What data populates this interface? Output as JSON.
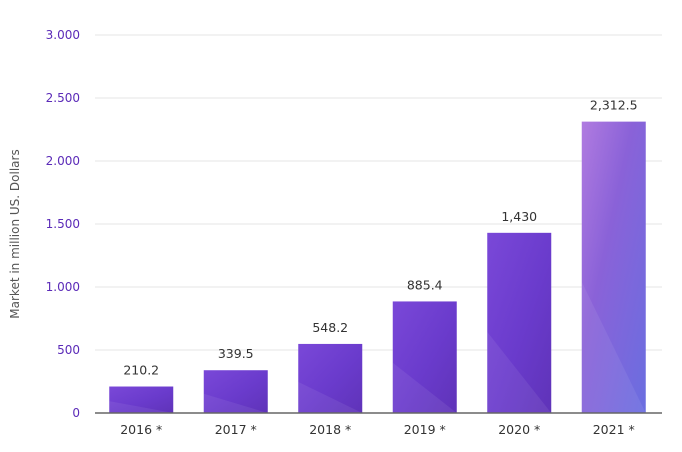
{
  "chart_data": {
    "type": "bar",
    "categories": [
      "2016 *",
      "2017 *",
      "2018 *",
      "2019 *",
      "2020 *",
      "2021 *"
    ],
    "values": [
      210.2,
      339.5,
      548.2,
      885.4,
      1430,
      2312.5
    ],
    "data_labels": [
      "210.2",
      "339.5",
      "548.2",
      "885.4",
      "1,430",
      "2,312.5"
    ],
    "ylabel": "Market in million US. Dollars",
    "xlabel": "",
    "ylim": [
      0,
      3000
    ],
    "yticks": [
      {
        "value": 0,
        "label": "0"
      },
      {
        "value": 500,
        "label": "500"
      },
      {
        "value": 1000,
        "label": "1.000"
      },
      {
        "value": 1500,
        "label": "1.500"
      },
      {
        "value": 2000,
        "label": "2.000"
      },
      {
        "value": 2500,
        "label": "2.500"
      },
      {
        "value": 3000,
        "label": "3.000"
      }
    ],
    "grid": true,
    "colors": {
      "bar_top": "#6a38cc",
      "bar_bottom": "#6b2fb8",
      "bar_highlight": "#a27de6",
      "tick_text": "#5b2bb8"
    }
  }
}
